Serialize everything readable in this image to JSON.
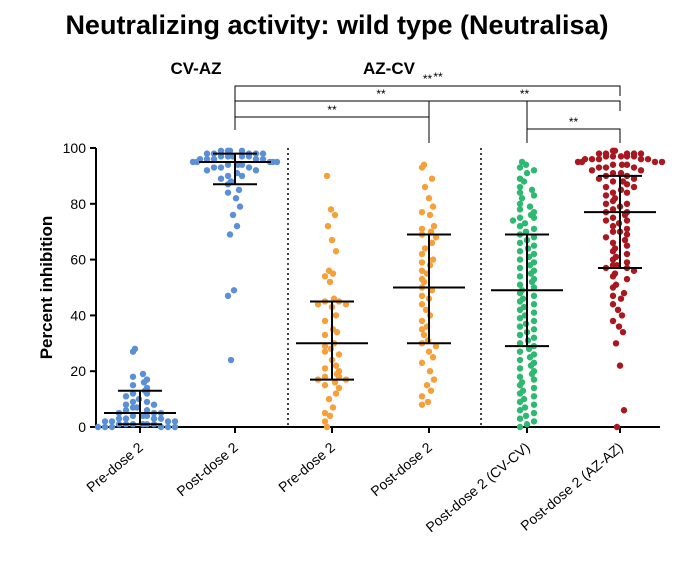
{
  "chart_data": {
    "type": "scatter",
    "title": "Neutralizing activity: wild type (Neutralisa)",
    "ylabel": "Percent inhibition",
    "xlabel": "",
    "ylim": [
      0,
      100
    ],
    "yticks": [
      "0",
      "20",
      "40",
      "60",
      "80",
      "100"
    ],
    "groups": [
      {
        "label": "CV-AZ",
        "categories": [
          0,
          1
        ]
      },
      {
        "label": "AZ-CV",
        "categories": [
          2,
          3
        ]
      }
    ],
    "categories": [
      "Pre-dose 2",
      "Post-dose 2",
      "Pre-dose 2",
      "Post-dose 2",
      "Post-dose 2 (CV-CV)",
      "Post-dose 2 (AZ-AZ)"
    ],
    "colors": [
      "#5b8fd6",
      "#5b8fd6",
      "#f5a03a",
      "#f5a03a",
      "#2eb872",
      "#a81820"
    ],
    "summary": [
      {
        "median": 5,
        "lower": 1,
        "upper": 13
      },
      {
        "median": 95,
        "lower": 87,
        "upper": 98
      },
      {
        "median": 30,
        "lower": 17,
        "upper": 45
      },
      {
        "median": 50,
        "lower": 30,
        "upper": 69
      },
      {
        "median": 49,
        "lower": 29,
        "upper": 69
      },
      {
        "median": 77,
        "lower": 57,
        "upper": 90
      }
    ],
    "series": [
      {
        "name": "",
        "values": [
          28,
          27,
          19,
          18,
          17,
          16,
          15,
          14,
          13,
          12,
          12,
          11,
          10,
          9,
          9,
          8,
          8,
          7,
          7,
          6,
          6,
          5,
          5,
          5,
          4,
          4,
          4,
          3,
          3,
          3,
          3,
          2,
          2,
          2,
          2,
          1,
          1,
          1,
          1,
          1,
          1,
          0,
          0,
          0,
          0,
          0,
          0
        ]
      },
      {
        "name": "",
        "values": [
          99,
          99,
          99,
          99,
          98,
          98,
          98,
          98,
          98,
          97,
          97,
          97,
          97,
          97,
          96,
          96,
          96,
          96,
          96,
          95,
          95,
          95,
          95,
          95,
          94,
          94,
          94,
          93,
          93,
          93,
          92,
          92,
          91,
          90,
          90,
          89,
          88,
          87,
          85,
          84,
          82,
          79,
          76,
          72,
          69,
          49,
          47,
          24
        ]
      },
      {
        "name": "",
        "values": [
          90,
          78,
          76,
          72,
          67,
          63,
          56,
          55,
          54,
          52,
          46,
          45,
          45,
          44,
          44,
          43,
          40,
          38,
          35,
          34,
          33,
          30,
          29,
          28,
          27,
          26,
          24,
          22,
          21,
          20,
          19,
          18,
          18,
          17,
          17,
          16,
          15,
          14,
          12,
          10,
          7,
          5,
          4,
          2,
          0
        ]
      },
      {
        "name": "",
        "values": [
          94,
          93,
          89,
          86,
          82,
          79,
          77,
          76,
          72,
          71,
          70,
          69,
          68,
          66,
          64,
          62,
          60,
          59,
          58,
          56,
          55,
          53,
          52,
          50,
          49,
          47,
          46,
          44,
          42,
          40,
          38,
          36,
          35,
          33,
          31,
          30,
          29,
          27,
          25,
          23,
          20,
          17,
          15,
          13,
          11,
          9,
          8
        ]
      },
      {
        "name": "",
        "values": [
          95,
          94,
          93,
          92,
          91,
          89,
          88,
          86,
          85,
          84,
          83,
          82,
          80,
          79,
          78,
          77,
          76,
          75,
          75,
          74,
          73,
          72,
          71,
          70,
          69,
          68,
          67,
          66,
          65,
          64,
          63,
          62,
          61,
          60,
          59,
          58,
          57,
          56,
          55,
          54,
          53,
          52,
          51,
          50,
          49,
          48,
          47,
          46,
          45,
          44,
          43,
          42,
          41,
          40,
          39,
          38,
          37,
          36,
          35,
          34,
          33,
          32,
          31,
          30,
          29,
          28,
          27,
          26,
          25,
          24,
          23,
          22,
          21,
          20,
          19,
          18,
          17,
          16,
          15,
          14,
          13,
          12,
          11,
          10,
          9,
          8,
          7,
          6,
          5,
          4,
          3,
          2,
          1,
          0
        ]
      },
      {
        "name": "",
        "values": [
          99,
          99,
          98,
          98,
          98,
          98,
          98,
          97,
          97,
          97,
          97,
          97,
          96,
          96,
          96,
          96,
          96,
          95,
          95,
          95,
          95,
          94,
          94,
          94,
          93,
          93,
          93,
          92,
          92,
          91,
          91,
          90,
          90,
          89,
          89,
          88,
          88,
          87,
          86,
          86,
          85,
          84,
          84,
          83,
          82,
          81,
          80,
          80,
          79,
          78,
          77,
          77,
          76,
          75,
          74,
          74,
          73,
          72,
          71,
          70,
          70,
          69,
          68,
          67,
          66,
          65,
          64,
          63,
          62,
          61,
          60,
          59,
          58,
          58,
          57,
          57,
          56,
          55,
          54,
          53,
          51,
          50,
          48,
          47,
          46,
          44,
          42,
          40,
          38,
          36,
          34,
          30,
          22,
          6,
          0
        ]
      }
    ],
    "significance": [
      {
        "from": 1,
        "to": 5,
        "label": "**"
      },
      {
        "from": 1,
        "to": 4,
        "label": "**"
      },
      {
        "from": 1,
        "to": 3,
        "label": "**"
      },
      {
        "from": 3,
        "to": 5,
        "label": "**"
      },
      {
        "from": 4,
        "to": 5,
        "label": "**"
      }
    ],
    "extra_marks": [
      "**"
    ]
  }
}
